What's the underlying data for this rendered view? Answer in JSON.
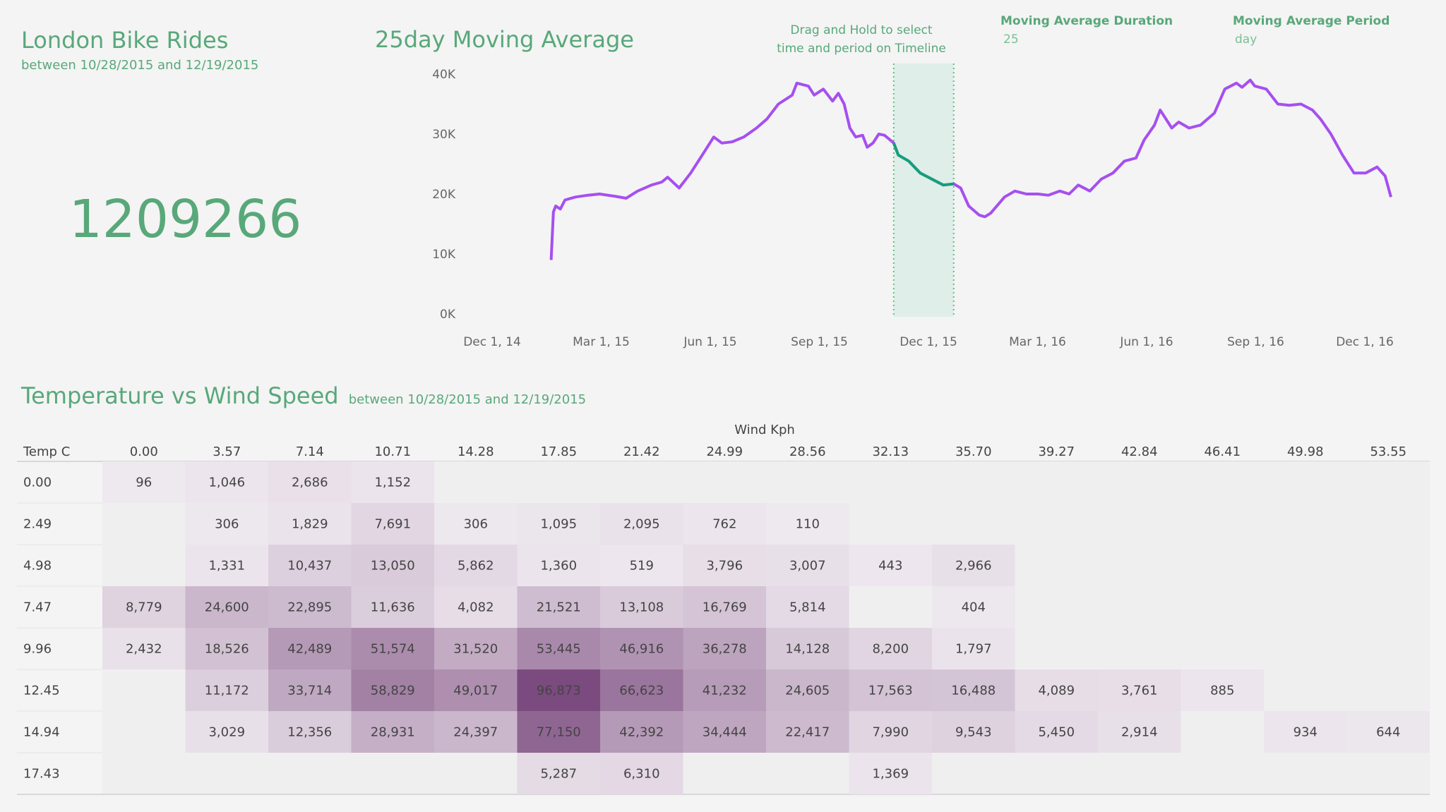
{
  "kpi": {
    "title": "London Bike Rides",
    "subtitle": "between 10/28/2015 and 12/19/2015",
    "value": "1209266"
  },
  "moving_average": {
    "title": "25day Moving Average",
    "drag_note_line1": "Drag and Hold to select",
    "drag_note_line2": "time and period on Timeline",
    "duration_label": "Moving Average Duration",
    "duration_value": "25",
    "period_label": "Moving Average Period",
    "period_value": "day"
  },
  "heatmap_section": {
    "title": "Temperature vs Wind Speed",
    "subtitle": "between 10/28/2015 and 12/19/2015"
  },
  "colors": {
    "accent_green": "#58a87a",
    "line_purple": "#a64ff0",
    "line_selected": "#14a07a",
    "selection_fill": "#dfeee9",
    "heat_low": "#ede6ee",
    "heat_high": "#7b4a7e"
  },
  "chart_data": [
    {
      "type": "line",
      "title": "25day Moving Average",
      "ylim": [
        0,
        40000
      ],
      "yticks": [
        "0K",
        "10K",
        "20K",
        "30K",
        "40K"
      ],
      "xticks": [
        "Dec 1, 14",
        "Mar 1, 15",
        "Jun 1, 15",
        "Sep 1, 15",
        "Dec 1, 15",
        "Mar 1, 16",
        "Jun 1, 16",
        "Sep 1, 16",
        "Dec 1, 16"
      ],
      "xrange": [
        "2014-12-01",
        "2017-01-01"
      ],
      "selection": [
        "2015-10-28",
        "2015-12-19"
      ],
      "series": [
        {
          "points": [
            [
              "2015-01-04",
              9000
            ],
            [
              "2015-01-06",
              17000
            ],
            [
              "2015-01-08",
              18000
            ],
            [
              "2015-01-12",
              17500
            ],
            [
              "2015-01-16",
              19000
            ],
            [
              "2015-01-25",
              19500
            ],
            [
              "2015-02-05",
              19800
            ],
            [
              "2015-02-15",
              20000
            ],
            [
              "2015-03-01",
              19600
            ],
            [
              "2015-03-10",
              19300
            ],
            [
              "2015-03-20",
              20500
            ],
            [
              "2015-04-01",
              21500
            ],
            [
              "2015-04-10",
              22000
            ],
            [
              "2015-04-15",
              22800
            ],
            [
              "2015-04-25",
              21000
            ],
            [
              "2015-05-05",
              23500
            ],
            [
              "2015-05-15",
              26500
            ],
            [
              "2015-05-25",
              29500
            ],
            [
              "2015-06-01",
              28500
            ],
            [
              "2015-06-10",
              28700
            ],
            [
              "2015-06-20",
              29500
            ],
            [
              "2015-07-01",
              31000
            ],
            [
              "2015-07-10",
              32500
            ],
            [
              "2015-07-20",
              35000
            ],
            [
              "2015-08-01",
              36500
            ],
            [
              "2015-08-05",
              38500
            ],
            [
              "2015-08-15",
              38000
            ],
            [
              "2015-08-20",
              36500
            ],
            [
              "2015-08-28",
              37500
            ],
            [
              "2015-09-05",
              35500
            ],
            [
              "2015-09-10",
              36800
            ],
            [
              "2015-09-15",
              35000
            ],
            [
              "2015-09-20",
              31000
            ],
            [
              "2015-09-25",
              29500
            ],
            [
              "2015-10-01",
              29800
            ],
            [
              "2015-10-05",
              27800
            ],
            [
              "2015-10-10",
              28500
            ],
            [
              "2015-10-15",
              30000
            ],
            [
              "2015-10-20",
              29800
            ],
            [
              "2015-10-25",
              29000
            ],
            [
              "2015-10-28",
              28500
            ],
            [
              "2015-11-01",
              26500
            ],
            [
              "2015-11-10",
              25500
            ],
            [
              "2015-11-20",
              23500
            ],
            [
              "2015-11-30",
              22500
            ],
            [
              "2015-12-10",
              21500
            ],
            [
              "2015-12-19",
              21700
            ],
            [
              "2015-12-25",
              21000
            ],
            [
              "2016-01-01",
              18000
            ],
            [
              "2016-01-10",
              16500
            ],
            [
              "2016-01-15",
              16200
            ],
            [
              "2016-01-20",
              16800
            ],
            [
              "2016-02-01",
              19500
            ],
            [
              "2016-02-10",
              20500
            ],
            [
              "2016-02-20",
              20000
            ],
            [
              "2016-03-01",
              20000
            ],
            [
              "2016-03-10",
              19800
            ],
            [
              "2016-03-20",
              20500
            ],
            [
              "2016-03-28",
              20000
            ],
            [
              "2016-04-05",
              21500
            ],
            [
              "2016-04-15",
              20500
            ],
            [
              "2016-04-25",
              22500
            ],
            [
              "2016-05-05",
              23500
            ],
            [
              "2016-05-15",
              25500
            ],
            [
              "2016-05-25",
              26000
            ],
            [
              "2016-06-01",
              29000
            ],
            [
              "2016-06-10",
              31500
            ],
            [
              "2016-06-15",
              34000
            ],
            [
              "2016-06-25",
              31000
            ],
            [
              "2016-07-01",
              32000
            ],
            [
              "2016-07-10",
              31000
            ],
            [
              "2016-07-20",
              31500
            ],
            [
              "2016-08-01",
              33500
            ],
            [
              "2016-08-10",
              37500
            ],
            [
              "2016-08-20",
              38500
            ],
            [
              "2016-08-25",
              37800
            ],
            [
              "2016-09-01",
              39000
            ],
            [
              "2016-09-05",
              38000
            ],
            [
              "2016-09-15",
              37500
            ],
            [
              "2016-09-25",
              35000
            ],
            [
              "2016-10-05",
              34800
            ],
            [
              "2016-10-15",
              35000
            ],
            [
              "2016-10-25",
              34000
            ],
            [
              "2016-11-01",
              32500
            ],
            [
              "2016-11-10",
              30000
            ],
            [
              "2016-11-20",
              26500
            ],
            [
              "2016-11-30",
              23500
            ],
            [
              "2016-12-10",
              23500
            ],
            [
              "2016-12-20",
              24500
            ],
            [
              "2016-12-27",
              23000
            ],
            [
              "2017-01-01",
              19500
            ]
          ]
        }
      ]
    },
    {
      "type": "heatmap",
      "title": "Temperature vs Wind Speed",
      "xlabel": "Wind Kph",
      "ylabel": "Temp C",
      "x": [
        "0.00",
        "3.57",
        "7.14",
        "10.71",
        "14.28",
        "17.85",
        "21.42",
        "24.99",
        "28.56",
        "32.13",
        "35.70",
        "39.27",
        "42.84",
        "46.41",
        "49.98",
        "53.55"
      ],
      "y": [
        "0.00",
        "2.49",
        "4.98",
        "7.47",
        "9.96",
        "12.45",
        "14.94",
        "17.43"
      ],
      "values": [
        [
          96,
          1046,
          2686,
          1152,
          null,
          null,
          null,
          null,
          null,
          null,
          null,
          null,
          null,
          null,
          null,
          null
        ],
        [
          null,
          306,
          1829,
          7691,
          306,
          1095,
          2095,
          762,
          110,
          null,
          null,
          null,
          null,
          null,
          null,
          null
        ],
        [
          null,
          1331,
          10437,
          13050,
          5862,
          1360,
          519,
          3796,
          3007,
          443,
          2966,
          null,
          null,
          null,
          null,
          null
        ],
        [
          8779,
          24600,
          22895,
          11636,
          4082,
          21521,
          13108,
          16769,
          5814,
          null,
          404,
          null,
          null,
          null,
          null,
          null
        ],
        [
          2432,
          18526,
          42489,
          51574,
          31520,
          53445,
          46916,
          36278,
          14128,
          8200,
          1797,
          null,
          null,
          null,
          null,
          null
        ],
        [
          null,
          11172,
          33714,
          58829,
          49017,
          96873,
          66623,
          41232,
          24605,
          17563,
          16488,
          4089,
          3761,
          885,
          null,
          null
        ],
        [
          null,
          3029,
          12356,
          28931,
          24397,
          77150,
          42392,
          34444,
          22417,
          7990,
          9543,
          5450,
          2914,
          null,
          934,
          644
        ],
        [
          null,
          null,
          null,
          null,
          null,
          5287,
          6310,
          null,
          null,
          1369,
          null,
          null,
          null,
          null,
          null,
          null
        ]
      ],
      "value_labels": [
        [
          "96",
          "1,046",
          "2,686",
          "1,152",
          "",
          "",
          "",
          "",
          "",
          "",
          "",
          "",
          "",
          "",
          "",
          ""
        ],
        [
          "",
          "306",
          "1,829",
          "7,691",
          "306",
          "1,095",
          "2,095",
          "762",
          "110",
          "",
          "",
          "",
          "",
          "",
          "",
          ""
        ],
        [
          "",
          "1,331",
          "10,437",
          "13,050",
          "5,862",
          "1,360",
          "519",
          "3,796",
          "3,007",
          "443",
          "2,966",
          "",
          "",
          "",
          "",
          ""
        ],
        [
          "8,779",
          "24,600",
          "22,895",
          "11,636",
          "4,082",
          "21,521",
          "13,108",
          "16,769",
          "5,814",
          "",
          "404",
          "",
          "",
          "",
          "",
          ""
        ],
        [
          "2,432",
          "18,526",
          "42,489",
          "51,574",
          "31,520",
          "53,445",
          "46,916",
          "36,278",
          "14,128",
          "8,200",
          "1,797",
          "",
          "",
          "",
          "",
          ""
        ],
        [
          "",
          "11,172",
          "33,714",
          "58,829",
          "49,017",
          "96,873",
          "66,623",
          "41,232",
          "24,605",
          "17,563",
          "16,488",
          "4,089",
          "3,761",
          "885",
          "",
          ""
        ],
        [
          "",
          "3,029",
          "12,356",
          "28,931",
          "24,397",
          "77,150",
          "42,392",
          "34,444",
          "22,417",
          "7,990",
          "9,543",
          "5,450",
          "2,914",
          "",
          "934",
          "644"
        ],
        [
          "",
          "",
          "",
          "",
          "",
          "5,287",
          "6,310",
          "",
          "",
          "1,369",
          "",
          "",
          "",
          "",
          "",
          ""
        ]
      ]
    }
  ]
}
